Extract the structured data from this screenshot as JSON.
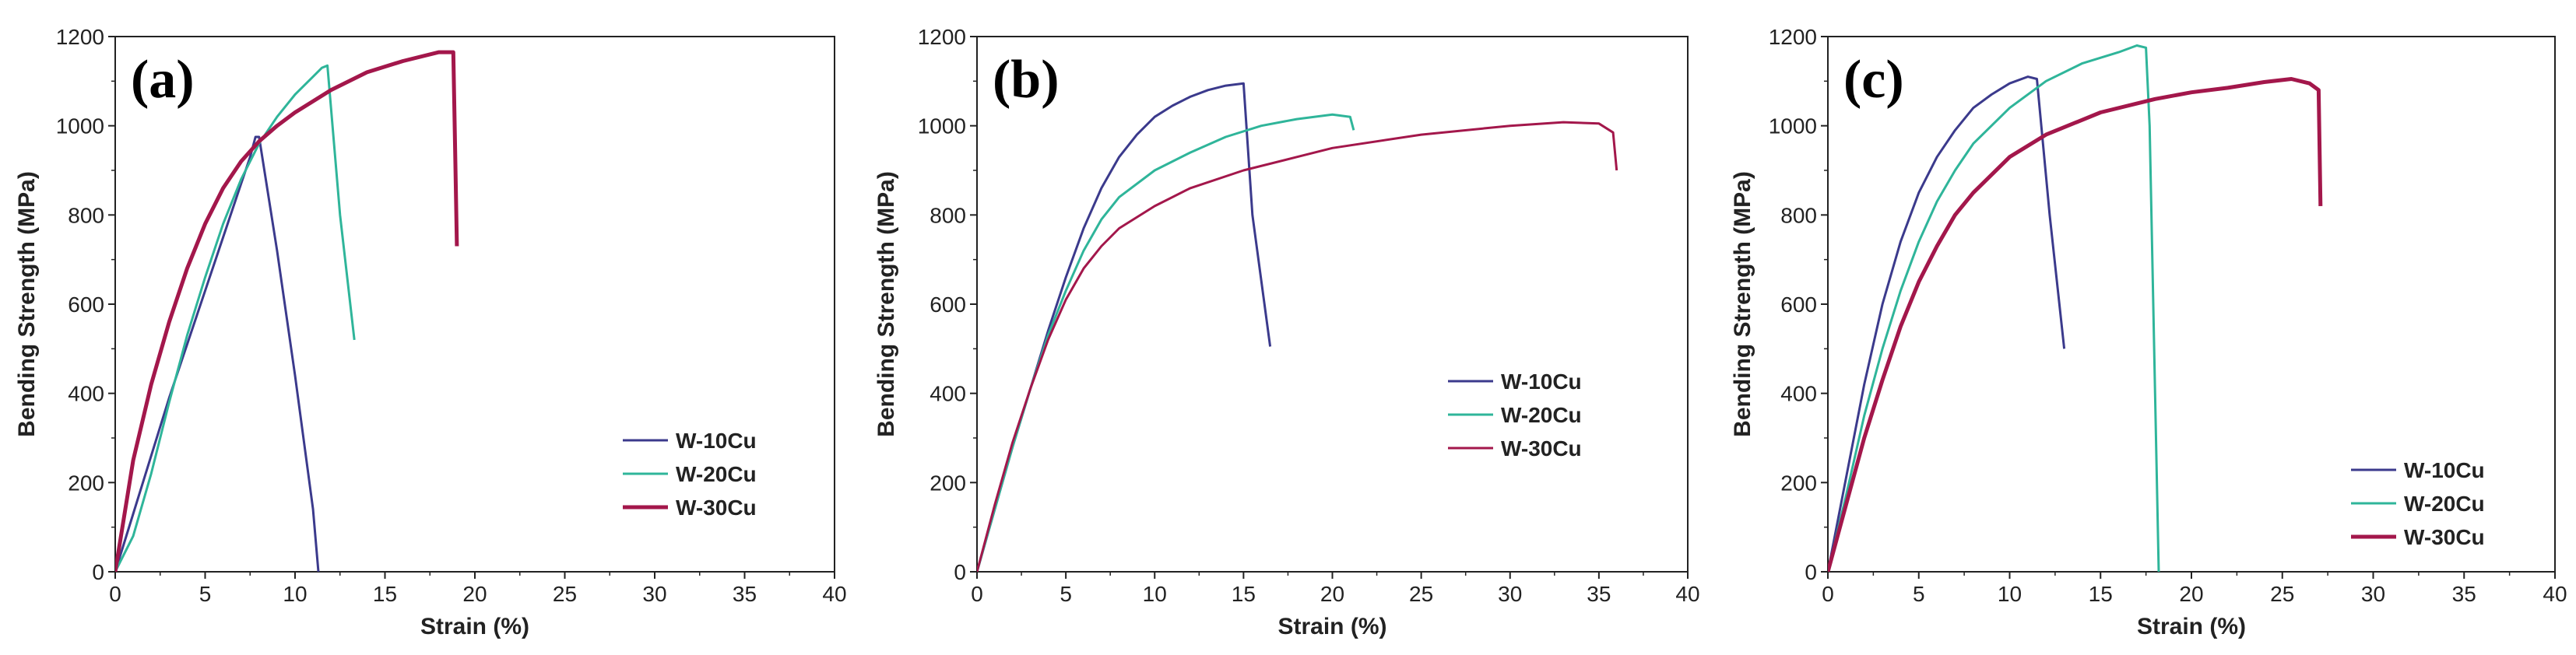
{
  "chart_data": [
    {
      "type": "line",
      "panel_label": "(a)",
      "xlabel": "Strain (%)",
      "ylabel": "Bending Strength (MPa)",
      "xlim": [
        0,
        40
      ],
      "ylim": [
        0,
        1200
      ],
      "xticks": [
        0,
        5,
        10,
        15,
        20,
        25,
        30,
        35,
        40
      ],
      "yticks": [
        0,
        200,
        400,
        600,
        800,
        1000,
        1200
      ],
      "legend_position": "lower-right",
      "series": [
        {
          "name": "W-10Cu",
          "color": "#3b3a8c",
          "line_width": "thin",
          "x": [
            0,
            1,
            2,
            3,
            4,
            5,
            6,
            7,
            7.5,
            7.8,
            8.0,
            9,
            10,
            11,
            11.3
          ],
          "y": [
            0,
            130,
            260,
            390,
            510,
            630,
            750,
            870,
            930,
            975,
            975,
            720,
            440,
            140,
            0
          ]
        },
        {
          "name": "W-20Cu",
          "color": "#2fb59a",
          "line_width": "thin",
          "x": [
            0,
            1,
            2,
            3,
            4,
            5,
            6,
            7,
            8,
            9,
            10,
            11,
            11.5,
            11.8,
            12.5,
            13.3
          ],
          "y": [
            0,
            80,
            220,
            380,
            530,
            660,
            780,
            880,
            960,
            1020,
            1070,
            1110,
            1130,
            1135,
            800,
            520
          ]
        },
        {
          "name": "W-30Cu",
          "color": "#a3174b",
          "line_width": "thick",
          "x": [
            0,
            1,
            2,
            3,
            4,
            5,
            6,
            7,
            8,
            9,
            10,
            12,
            14,
            16,
            18,
            18.8,
            18.9,
            19.0
          ],
          "y": [
            0,
            250,
            420,
            560,
            680,
            780,
            860,
            920,
            965,
            1000,
            1030,
            1080,
            1120,
            1145,
            1165,
            1165,
            950,
            730
          ]
        }
      ]
    },
    {
      "type": "line",
      "panel_label": "(b)",
      "xlabel": "Strain (%)",
      "ylabel": "Bending Strength (MPa)",
      "xlim": [
        0,
        40
      ],
      "ylim": [
        0,
        1200
      ],
      "xticks": [
        0,
        5,
        10,
        15,
        20,
        25,
        30,
        35,
        40
      ],
      "yticks": [
        0,
        200,
        400,
        600,
        800,
        1000,
        1200
      ],
      "legend_position": "lower-right",
      "series": [
        {
          "name": "W-10Cu",
          "color": "#3b3a8c",
          "line_width": "thin",
          "x": [
            0,
            1,
            2,
            3,
            4,
            5,
            6,
            7,
            8,
            9,
            10,
            11,
            12,
            13,
            14,
            15,
            15.5,
            16.5
          ],
          "y": [
            0,
            140,
            280,
            410,
            540,
            660,
            770,
            860,
            930,
            980,
            1020,
            1045,
            1065,
            1080,
            1090,
            1095,
            800,
            505
          ]
        },
        {
          "name": "W-20Cu",
          "color": "#2fb59a",
          "line_width": "thin",
          "x": [
            0,
            1,
            2,
            3,
            4,
            5,
            6,
            7,
            8,
            10,
            12,
            14,
            16,
            18,
            20,
            21,
            21.2
          ],
          "y": [
            0,
            140,
            280,
            410,
            530,
            630,
            720,
            790,
            840,
            900,
            940,
            975,
            1000,
            1015,
            1025,
            1020,
            990
          ]
        },
        {
          "name": "W-30Cu",
          "color": "#a3174b",
          "line_width": "thin",
          "x": [
            0,
            1,
            2,
            3,
            4,
            5,
            6,
            7,
            8,
            10,
            12,
            15,
            18,
            20,
            25,
            30,
            33,
            35,
            35.8,
            36.0
          ],
          "y": [
            0,
            150,
            290,
            410,
            520,
            610,
            680,
            730,
            770,
            820,
            860,
            900,
            930,
            950,
            980,
            1000,
            1008,
            1005,
            985,
            900
          ]
        }
      ]
    },
    {
      "type": "line",
      "panel_label": "(c)",
      "xlabel": "Strain (%)",
      "ylabel": "Bending Strength (MPa)",
      "xlim": [
        0,
        40
      ],
      "ylim": [
        0,
        1200
      ],
      "xticks": [
        0,
        5,
        10,
        15,
        20,
        25,
        30,
        35,
        40
      ],
      "yticks": [
        0,
        200,
        400,
        600,
        800,
        1000,
        1200
      ],
      "legend_position": "lower-right",
      "series": [
        {
          "name": "W-10Cu",
          "color": "#3b3a8c",
          "line_width": "thin",
          "x": [
            0,
            1,
            2,
            3,
            4,
            5,
            6,
            7,
            8,
            9,
            10,
            11,
            11.5,
            12.2,
            13.0
          ],
          "y": [
            0,
            210,
            420,
            600,
            740,
            850,
            930,
            990,
            1040,
            1070,
            1095,
            1110,
            1105,
            800,
            500
          ]
        },
        {
          "name": "W-20Cu",
          "color": "#2fb59a",
          "line_width": "thin",
          "x": [
            0,
            1,
            2,
            3,
            4,
            5,
            6,
            7,
            8,
            10,
            12,
            14,
            16,
            17,
            17.5,
            17.7,
            18.0,
            18.2
          ],
          "y": [
            0,
            170,
            350,
            500,
            630,
            740,
            830,
            900,
            960,
            1040,
            1100,
            1140,
            1165,
            1180,
            1175,
            1000,
            400,
            0
          ]
        },
        {
          "name": "W-30Cu",
          "color": "#a3174b",
          "line_width": "thick",
          "x": [
            0,
            1,
            2,
            3,
            4,
            5,
            6,
            7,
            8,
            10,
            12,
            15,
            18,
            20,
            22,
            24,
            25.5,
            26.5,
            27.0,
            27.1
          ],
          "y": [
            0,
            150,
            300,
            430,
            550,
            650,
            730,
            800,
            850,
            930,
            980,
            1030,
            1060,
            1075,
            1085,
            1098,
            1105,
            1095,
            1080,
            820
          ]
        }
      ]
    }
  ]
}
